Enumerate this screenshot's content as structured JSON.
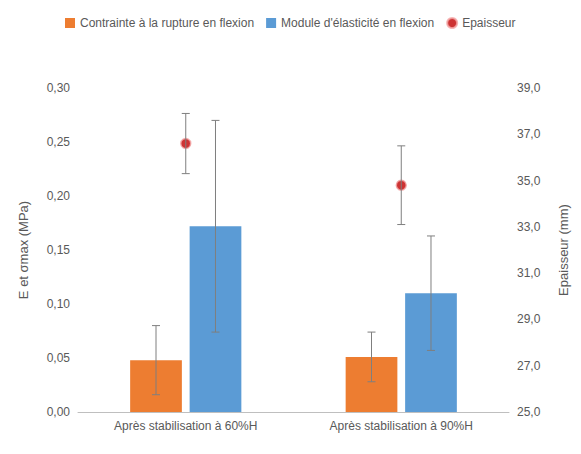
{
  "chart_data": {
    "type": "bar",
    "categories": [
      "Après stabilisation à 60%H",
      "Après stabilisation à 90%H"
    ],
    "series": [
      {
        "name": "Contrainte à la rupture en flexion",
        "type": "bar",
        "color": "#ED7D31",
        "values": [
          0.048,
          0.051
        ],
        "errors": [
          0.032,
          0.023
        ]
      },
      {
        "name": "Module d'élasticité en flexion",
        "type": "bar",
        "color": "#5B9BD5",
        "values": [
          0.172,
          0.11
        ],
        "errors": [
          0.098,
          0.053
        ]
      },
      {
        "name": "Epaisseur",
        "type": "scatter",
        "marker": "circle",
        "color": "#C00000",
        "axis": "y2",
        "values": [
          36.6,
          34.8
        ],
        "errors": [
          1.3,
          1.7
        ]
      }
    ],
    "ylabel": "E et σmax (MPa)",
    "y2label": "Epaisseur (mm)",
    "ylim": [
      0,
      0.3
    ],
    "yticks": [
      {
        "value": 0,
        "label": "0,00"
      },
      {
        "value": 0.05,
        "label": "0,05"
      },
      {
        "value": 0.1,
        "label": "0,10"
      },
      {
        "value": 0.15,
        "label": "0,15"
      },
      {
        "value": 0.2,
        "label": "0,20"
      },
      {
        "value": 0.25,
        "label": "0,25"
      },
      {
        "value": 0.3,
        "label": "0,30"
      }
    ],
    "y2lim": [
      25,
      39
    ],
    "y2ticks": [
      {
        "value": 25,
        "label": "25,0"
      },
      {
        "value": 27,
        "label": "27,0"
      },
      {
        "value": 29,
        "label": "29,0"
      },
      {
        "value": 31,
        "label": "31,0"
      },
      {
        "value": 33,
        "label": "33,0"
      },
      {
        "value": 35,
        "label": "35,0"
      },
      {
        "value": 37,
        "label": "37,0"
      },
      {
        "value": 39,
        "label": "39,0"
      }
    ],
    "grid": false,
    "legend": "top"
  }
}
